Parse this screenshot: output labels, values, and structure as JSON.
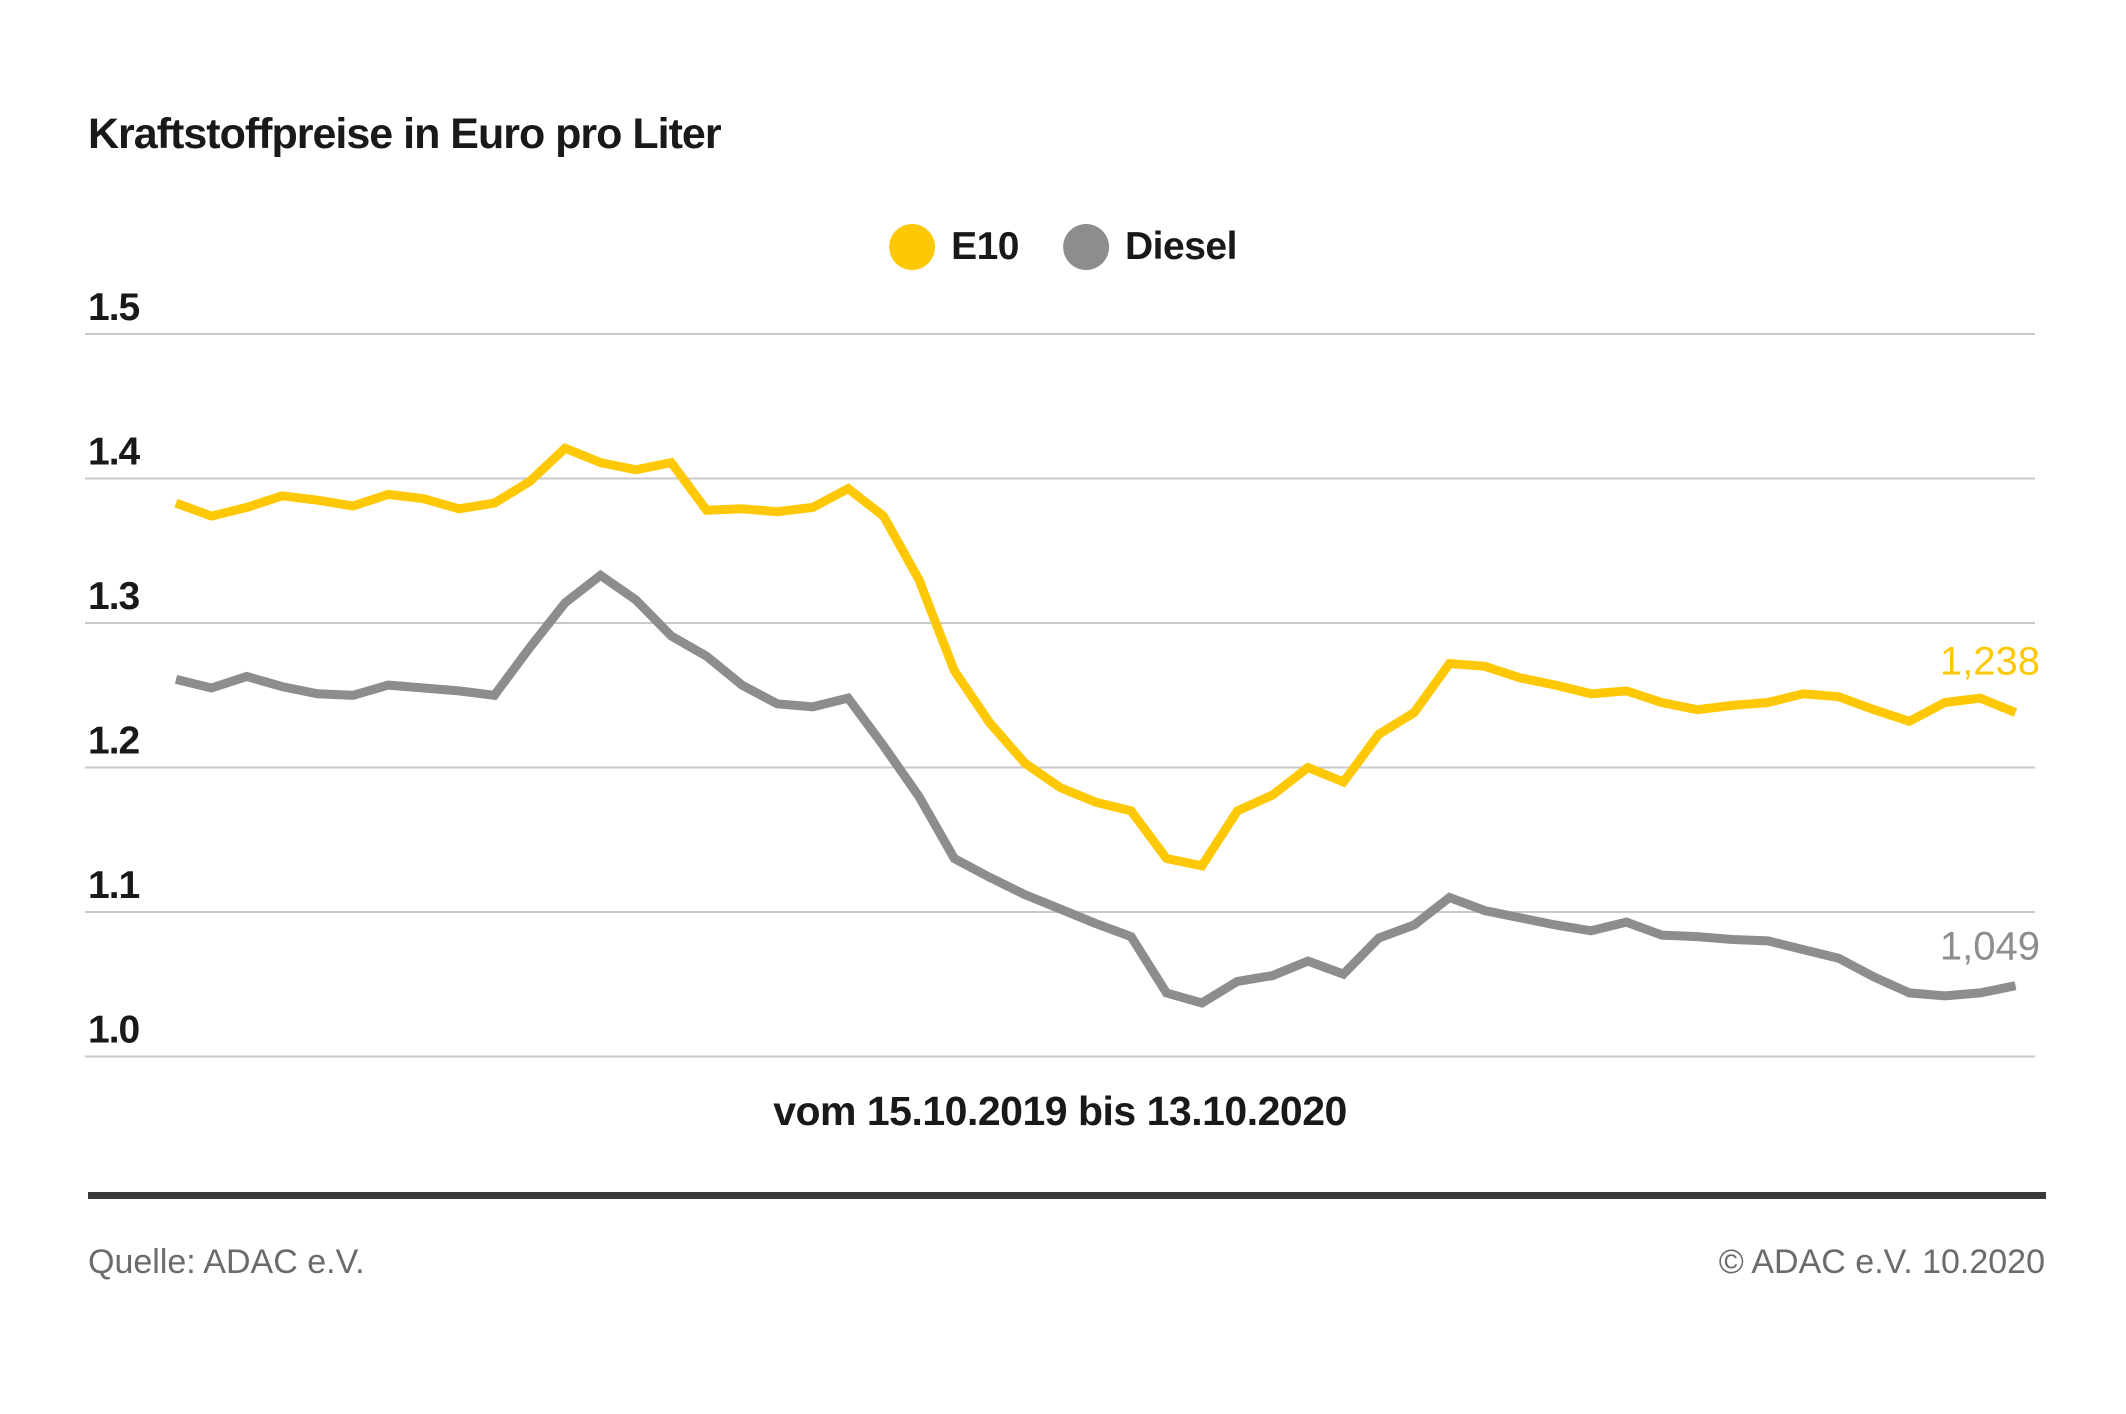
{
  "header": {
    "title": "Kraftstoffpreise in Euro pro Liter"
  },
  "legend": {
    "e10": "E10",
    "diesel": "Diesel"
  },
  "colors": {
    "e10": "#FFC805",
    "diesel": "#8D8D8D",
    "gridline": "#C9C9C9",
    "text": "#191919",
    "footer_text": "#6B6B6B",
    "footer_rule": "#3A3A3A",
    "background": "#FFFFFF"
  },
  "chart_data": {
    "type": "line",
    "title": "Kraftstoffpreise in Euro pro Liter",
    "xlabel": "vom 15.10.2019 bis 13.10.2020",
    "ylabel": "",
    "x_range": {
      "from": "15.10.2019",
      "to": "13.10.2020",
      "interval": "weekly",
      "points": 53
    },
    "ylim": [
      1.0,
      1.5
    ],
    "grid": true,
    "legend_position": "top-center",
    "yticks": [
      {
        "value": 1.5,
        "label": "1.5"
      },
      {
        "value": 1.4,
        "label": "1.4"
      },
      {
        "value": 1.3,
        "label": "1.3"
      },
      {
        "value": 1.2,
        "label": "1.2"
      },
      {
        "value": 1.1,
        "label": "1.1"
      },
      {
        "value": 1.0,
        "label": "1.0"
      }
    ],
    "series": [
      {
        "name": "E10",
        "color": "#FFC805",
        "end_label": "1,238",
        "values": [
          1.383,
          1.374,
          1.38,
          1.388,
          1.385,
          1.381,
          1.389,
          1.386,
          1.379,
          1.383,
          1.398,
          1.421,
          1.411,
          1.406,
          1.411,
          1.378,
          1.379,
          1.377,
          1.38,
          1.393,
          1.374,
          1.33,
          1.267,
          1.231,
          1.203,
          1.186,
          1.176,
          1.17,
          1.137,
          1.132,
          1.17,
          1.181,
          1.2,
          1.19,
          1.223,
          1.238,
          1.272,
          1.27,
          1.262,
          1.257,
          1.251,
          1.253,
          1.245,
          1.24,
          1.243,
          1.245,
          1.251,
          1.249,
          1.24,
          1.232,
          1.245,
          1.248,
          1.238
        ]
      },
      {
        "name": "Diesel",
        "color": "#8D8D8D",
        "end_label": "1,049",
        "values": [
          1.261,
          1.255,
          1.263,
          1.256,
          1.251,
          1.25,
          1.257,
          1.255,
          1.253,
          1.25,
          1.283,
          1.314,
          1.333,
          1.316,
          1.291,
          1.277,
          1.257,
          1.244,
          1.242,
          1.248,
          1.215,
          1.18,
          1.137,
          1.124,
          1.112,
          1.102,
          1.092,
          1.083,
          1.044,
          1.037,
          1.052,
          1.056,
          1.066,
          1.057,
          1.082,
          1.091,
          1.11,
          1.101,
          1.096,
          1.091,
          1.087,
          1.093,
          1.084,
          1.083,
          1.081,
          1.08,
          1.074,
          1.068,
          1.055,
          1.044,
          1.042,
          1.044,
          1.049
        ]
      }
    ]
  },
  "axis": {
    "xlabel": "vom 15.10.2019 bis 13.10.2020"
  },
  "footer": {
    "source": "Quelle: ADAC e.V.",
    "copyright": "© ADAC e.V. 10.2020"
  }
}
